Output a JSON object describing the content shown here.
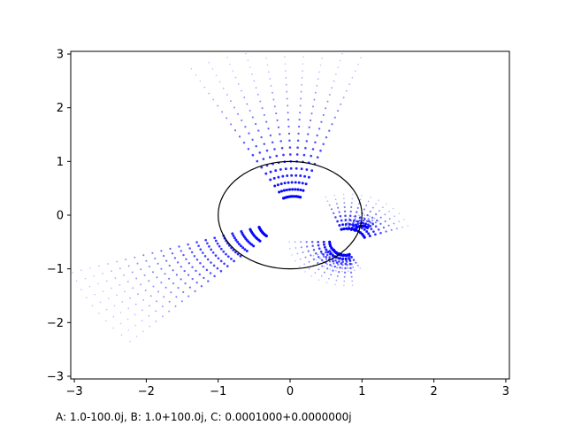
{
  "caption": "A: 1.0-100.0j, B: 1.0+100.0j, C: 0.0001000+0.0000000j",
  "chart_data": {
    "type": "scatter",
    "title": "",
    "xlabel": "",
    "ylabel": "",
    "xlim": [
      -3.05,
      3.05
    ],
    "ylim": [
      -3.05,
      3.05
    ],
    "x_ticks": [
      {
        "value": -3,
        "label": "−3"
      },
      {
        "value": -2,
        "label": "−2"
      },
      {
        "value": -1,
        "label": "−1"
      },
      {
        "value": 0,
        "label": "0"
      },
      {
        "value": 1,
        "label": "1"
      },
      {
        "value": 2,
        "label": "2"
      },
      {
        "value": 3,
        "label": "3"
      }
    ],
    "y_ticks": [
      {
        "value": -3,
        "label": "−3"
      },
      {
        "value": -2,
        "label": "−2"
      },
      {
        "value": -1,
        "label": "−1"
      },
      {
        "value": 0,
        "label": "0"
      },
      {
        "value": 1,
        "label": "1"
      },
      {
        "value": 2,
        "label": "2"
      },
      {
        "value": 3,
        "label": "3"
      }
    ],
    "grid": false,
    "point_color": "#0000ff",
    "unit_circle": {
      "center": [
        0,
        0
      ],
      "radius": 1,
      "color": "#000000"
    },
    "arc_families": [
      {
        "center": [
          0.05,
          0.05
        ],
        "radius_start": 0.3,
        "radius_step": 0.13,
        "count": 22,
        "angle_start_deg": 72,
        "angle_end_deg": 118,
        "points_per_arc": 10
      },
      {
        "center": [
          -0.05,
          -0.1
        ],
        "radius_start": 0.4,
        "radius_step": 0.13,
        "count": 22,
        "angle_start_deg": 198,
        "angle_end_deg": 226,
        "points_per_arc": 10
      },
      {
        "center": [
          0.8,
          -0.5
        ],
        "radius_start": 0.25,
        "radius_step": 0.08,
        "count": 9,
        "angle_start_deg": 20,
        "angle_end_deg": 110,
        "points_per_arc": 12
      },
      {
        "center": [
          1.0,
          -0.3
        ],
        "radius_start": 0.1,
        "radius_step": 0.05,
        "count": 5,
        "angle_start_deg": 40,
        "angle_end_deg": 170,
        "points_per_arc": 10
      },
      {
        "center": [
          0.8,
          -0.5
        ],
        "radius_start": 0.25,
        "radius_step": 0.08,
        "count": 8,
        "angle_start_deg": 180,
        "angle_end_deg": 275,
        "points_per_arc": 12
      },
      {
        "center": [
          0.75,
          -0.6
        ],
        "radius_start": 0.15,
        "radius_step": 0.06,
        "count": 6,
        "angle_start_deg": 200,
        "angle_end_deg": 300,
        "points_per_arc": 10
      }
    ]
  }
}
